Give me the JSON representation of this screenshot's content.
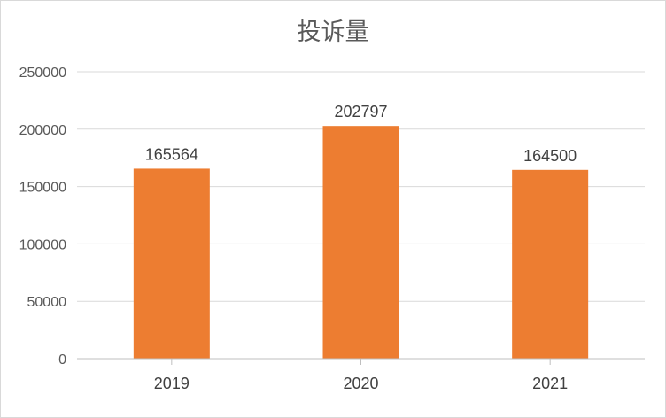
{
  "chart_data": {
    "type": "bar",
    "title": "投诉量",
    "xlabel": "",
    "ylabel": "",
    "categories": [
      "2019",
      "2020",
      "2021"
    ],
    "values": [
      165564,
      202797,
      164500
    ],
    "ylim": [
      0,
      250000
    ],
    "yticks": [
      0,
      50000,
      100000,
      150000,
      200000,
      250000
    ],
    "grid": true,
    "legend": "none",
    "bar_color": "#ED7D31"
  }
}
